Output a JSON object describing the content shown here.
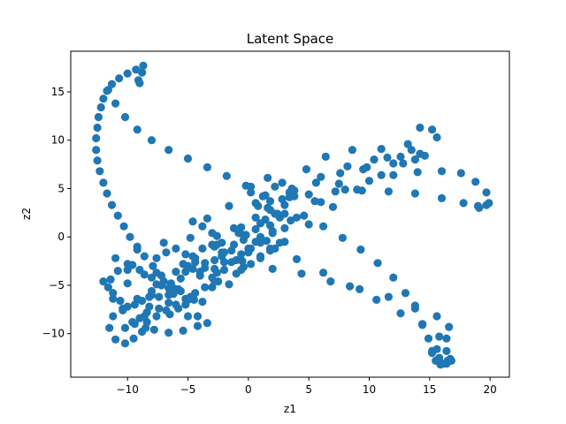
{
  "chart_data": {
    "type": "scatter",
    "title": "Latent Space",
    "xlabel": "z1",
    "ylabel": "z2",
    "xlim": [
      -14.7,
      21.6
    ],
    "ylim": [
      -14.5,
      19.2
    ],
    "xticks": [
      -10,
      -5,
      0,
      5,
      10,
      15,
      20
    ],
    "yticks": [
      -10,
      -5,
      0,
      5,
      10,
      15
    ],
    "grid": false,
    "color": "#1f77b4",
    "series": [
      {
        "points": [
          [
            -8.7,
            17.7
          ],
          [
            -9.3,
            17.3
          ],
          [
            -10.0,
            16.9
          ],
          [
            -10.7,
            16.4
          ],
          [
            -11.3,
            15.8
          ],
          [
            -11.7,
            15.1
          ],
          [
            -12.0,
            14.3
          ],
          [
            -12.2,
            13.4
          ],
          [
            -12.4,
            12.4
          ],
          [
            -12.5,
            11.3
          ],
          [
            -12.6,
            10.2
          ],
          [
            -12.6,
            9.0
          ],
          [
            -12.5,
            7.9
          ],
          [
            -12.3,
            6.8
          ],
          [
            -12.0,
            5.6
          ],
          [
            -11.7,
            4.5
          ],
          [
            -11.3,
            3.3
          ],
          [
            -10.8,
            2.2
          ],
          [
            -10.3,
            1.1
          ],
          [
            -9.8,
            0.0
          ],
          [
            -9.2,
            -1.0
          ],
          [
            -8.6,
            -2.0
          ],
          [
            -7.9,
            -3.0
          ],
          [
            -7.2,
            -4.0
          ],
          [
            -6.4,
            -4.8
          ],
          [
            -5.6,
            -5.6
          ],
          [
            -4.7,
            -6.2
          ],
          [
            -3.8,
            -6.7
          ],
          [
            -8.8,
            17.0
          ],
          [
            -9.1,
            16.2
          ],
          [
            -9.0,
            15.9
          ],
          [
            -11.6,
            15.2
          ],
          [
            -11.0,
            13.8
          ],
          [
            -10.2,
            12.4
          ],
          [
            -9.2,
            11.1
          ],
          [
            -8.0,
            10.0
          ],
          [
            -6.6,
            9.0
          ],
          [
            -5.0,
            8.1
          ],
          [
            -3.4,
            7.2
          ],
          [
            -1.8,
            6.3
          ],
          [
            -0.2,
            5.3
          ],
          [
            1.4,
            4.3
          ],
          [
            3.0,
            3.3
          ],
          [
            4.6,
            2.2
          ],
          [
            6.2,
            1.1
          ],
          [
            7.8,
            -0.1
          ],
          [
            9.3,
            -1.3
          ],
          [
            10.7,
            -2.7
          ],
          [
            12.0,
            -4.2
          ],
          [
            13.0,
            -5.8
          ],
          [
            13.8,
            -7.4
          ],
          [
            14.4,
            -9.0
          ],
          [
            14.9,
            -10.5
          ],
          [
            15.2,
            -11.8
          ],
          [
            15.5,
            -12.8
          ],
          [
            15.9,
            -13.2
          ],
          [
            16.4,
            -13.1
          ],
          [
            16.7,
            -12.6
          ],
          [
            -9.2,
            -1.3
          ],
          [
            -7.0,
            -0.6
          ],
          [
            -4.8,
            -0.1
          ],
          [
            -2.6,
            0.1
          ],
          [
            -0.4,
            -0.3
          ],
          [
            1.8,
            -1.2
          ],
          [
            4.0,
            -2.3
          ],
          [
            6.2,
            -3.7
          ],
          [
            8.4,
            -5.1
          ],
          [
            10.6,
            -6.5
          ],
          [
            12.6,
            -7.9
          ],
          [
            14.4,
            -9.1
          ],
          [
            15.8,
            -10.3
          ],
          [
            16.4,
            -11.8
          ],
          [
            16.5,
            -12.8
          ],
          [
            -10.0,
            -3.4
          ],
          [
            -7.6,
            -3.7
          ],
          [
            -5.2,
            -3.6
          ],
          [
            -2.8,
            -3.3
          ],
          [
            -0.4,
            -3.1
          ],
          [
            2.0,
            -3.3
          ],
          [
            4.4,
            -3.8
          ],
          [
            6.8,
            -4.6
          ],
          [
            9.2,
            -5.4
          ],
          [
            11.6,
            -6.2
          ],
          [
            13.8,
            -7.1
          ],
          [
            15.6,
            -8.2
          ],
          [
            16.6,
            -9.3
          ],
          [
            16.4,
            -10.5
          ],
          [
            15.6,
            -11.6
          ],
          [
            -8.0,
            -6.0
          ],
          [
            -6.2,
            -5.3
          ],
          [
            -4.0,
            -4.0
          ],
          [
            -2.0,
            -2.6
          ],
          [
            0.0,
            -1.2
          ],
          [
            2.0,
            0.4
          ],
          [
            4.0,
            2.0
          ],
          [
            6.0,
            3.6
          ],
          [
            8.0,
            4.9
          ],
          [
            10.0,
            5.8
          ],
          [
            12.0,
            6.4
          ],
          [
            14.0,
            6.7
          ],
          [
            16.0,
            6.8
          ],
          [
            17.6,
            6.6
          ],
          [
            18.8,
            5.7
          ],
          [
            19.7,
            4.6
          ],
          [
            19.9,
            3.5
          ],
          [
            19.1,
            3.0
          ],
          [
            -5.0,
            -6.5
          ],
          [
            -3.0,
            -5.2
          ],
          [
            -1.0,
            -3.8
          ],
          [
            1.0,
            -2.2
          ],
          [
            3.0,
            -0.5
          ],
          [
            5.0,
            1.3
          ],
          [
            7.0,
            3.1
          ],
          [
            9.0,
            4.9
          ],
          [
            11.0,
            6.4
          ],
          [
            12.8,
            7.6
          ],
          [
            14.2,
            8.6
          ],
          [
            -8.5,
            -9.4
          ],
          [
            -6.5,
            -8.0
          ],
          [
            -4.5,
            -6.5
          ],
          [
            -2.5,
            -4.6
          ],
          [
            -0.5,
            -2.5
          ],
          [
            1.5,
            -0.4
          ],
          [
            3.5,
            1.7
          ],
          [
            5.5,
            3.7
          ],
          [
            7.5,
            5.5
          ],
          [
            9.5,
            7.0
          ],
          [
            11.5,
            8.2
          ],
          [
            13.5,
            9.0
          ],
          [
            -2.2,
            -2.0
          ],
          [
            -0.2,
            0.2
          ],
          [
            1.8,
            2.8
          ],
          [
            3.6,
            5.0
          ],
          [
            4.8,
            7.0
          ],
          [
            6.4,
            8.3
          ],
          [
            8.6,
            9.0
          ],
          [
            11.0,
            9.1
          ],
          [
            13.2,
            9.6
          ],
          [
            14.2,
            11.3
          ],
          [
            15.2,
            11.1
          ],
          [
            15.6,
            10.3
          ],
          [
            -1.6,
            3.2
          ],
          [
            0.6,
            3.5
          ],
          [
            2.8,
            3.9
          ],
          [
            5.0,
            4.4
          ],
          [
            7.2,
            4.7
          ],
          [
            9.4,
            4.8
          ],
          [
            11.6,
            4.7
          ],
          [
            13.8,
            4.5
          ],
          [
            16.0,
            4.0
          ],
          [
            17.8,
            3.5
          ],
          [
            19.0,
            3.2
          ],
          [
            19.7,
            3.3
          ],
          [
            -2.8,
            -1.0
          ],
          [
            -0.6,
            1.0
          ],
          [
            1.6,
            3.0
          ],
          [
            3.8,
            4.8
          ],
          [
            6.0,
            6.2
          ],
          [
            8.2,
            7.3
          ],
          [
            10.4,
            8.0
          ],
          [
            12.6,
            8.3
          ],
          [
            14.6,
            8.4
          ],
          [
            0.6,
            0.8
          ],
          [
            2.2,
            2.4
          ],
          [
            3.8,
            4.2
          ],
          [
            5.6,
            5.6
          ],
          [
            7.6,
            6.6
          ],
          [
            9.8,
            7.2
          ],
          [
            12.0,
            7.6
          ],
          [
            13.8,
            8.0
          ],
          [
            -3.4,
            1.9
          ],
          [
            -1.2,
            0.9
          ],
          [
            0.6,
            -0.5
          ],
          [
            2.2,
            -1.2
          ],
          [
            3.0,
            0.9
          ],
          [
            1.8,
            3.7
          ],
          [
            0.2,
            5.2
          ],
          [
            1.6,
            6.1
          ],
          [
            2.8,
            5.6
          ],
          [
            3.4,
            4.1
          ],
          [
            2.4,
            2.4
          ],
          [
            1.0,
            1.4
          ],
          [
            -0.8,
            0.4
          ],
          [
            -2.6,
            -0.8
          ],
          [
            -4.4,
            -2.2
          ],
          [
            -11.4,
            -4.4
          ],
          [
            -10.8,
            -3.5
          ],
          [
            -10.0,
            -4.8
          ],
          [
            -9.2,
            -6.4
          ],
          [
            -8.4,
            -7.8
          ],
          [
            -7.4,
            -7.4
          ],
          [
            -6.6,
            -6.0
          ],
          [
            -5.8,
            -5.4
          ],
          [
            -4.8,
            -6.2
          ],
          [
            -11.2,
            -6.4
          ],
          [
            -10.4,
            -7.4
          ],
          [
            -9.6,
            -8.8
          ],
          [
            -8.8,
            -9.8
          ],
          [
            -9.5,
            -10.5
          ],
          [
            -10.2,
            -11.0
          ],
          [
            -11.0,
            -10.6
          ],
          [
            -11.5,
            -9.4
          ],
          [
            -11.2,
            -8.2
          ],
          [
            -10.4,
            -7.6
          ],
          [
            -11.0,
            -2.2
          ],
          [
            -10.0,
            -2.8
          ],
          [
            -9.0,
            -3.4
          ],
          [
            -8.0,
            -4.2
          ],
          [
            -7.2,
            -5.0
          ],
          [
            -6.2,
            -5.9
          ],
          [
            -5.2,
            -7.0
          ],
          [
            -4.2,
            -8.2
          ],
          [
            -3.4,
            -8.9
          ],
          [
            -9.6,
            -2.9
          ],
          [
            -8.6,
            -3.9
          ],
          [
            -7.6,
            -4.9
          ],
          [
            -6.6,
            -5.3
          ],
          [
            -5.6,
            -4.3
          ],
          [
            -4.6,
            -3.3
          ],
          [
            -3.6,
            -2.7
          ],
          [
            -2.6,
            -3.7
          ],
          [
            -1.6,
            -4.9
          ],
          [
            -9.0,
            -8.4
          ],
          [
            -8.2,
            -7.2
          ],
          [
            -7.4,
            -6.2
          ],
          [
            -6.6,
            -6.8
          ],
          [
            -5.8,
            -7.4
          ],
          [
            -5.0,
            -8.2
          ],
          [
            -4.2,
            -9.2
          ],
          [
            -5.4,
            -9.7
          ],
          [
            -6.6,
            -9.9
          ],
          [
            -7.8,
            -9.6
          ],
          [
            -8.0,
            -5.6
          ],
          [
            -7.0,
            -4.6
          ],
          [
            -6.0,
            -3.6
          ],
          [
            -5.0,
            -3.0
          ],
          [
            -4.0,
            -3.6
          ],
          [
            -3.0,
            -4.2
          ],
          [
            -2.0,
            -3.4
          ],
          [
            -1.0,
            -2.4
          ],
          [
            0.0,
            -1.6
          ],
          [
            1.0,
            -0.6
          ],
          [
            -4.6,
            1.6
          ],
          [
            -3.8,
            1.1
          ],
          [
            -3.0,
            0.4
          ],
          [
            -2.2,
            -0.6
          ],
          [
            -1.4,
            -1.4
          ],
          [
            -0.6,
            -1.8
          ],
          [
            0.2,
            -1.2
          ],
          [
            1.0,
            0.0
          ],
          [
            1.8,
            1.2
          ],
          [
            2.6,
            2.0
          ],
          [
            -5.4,
            -2.8
          ],
          [
            -4.6,
            -2.0
          ],
          [
            -3.8,
            -1.2
          ],
          [
            -3.0,
            -0.8
          ],
          [
            -2.2,
            -1.6
          ],
          [
            -1.4,
            -2.6
          ],
          [
            -0.6,
            -3.4
          ],
          [
            0.2,
            -2.8
          ],
          [
            1.0,
            -2.0
          ],
          [
            1.8,
            -1.4
          ],
          [
            -7.6,
            -2.2
          ],
          [
            -6.8,
            -1.6
          ],
          [
            -6.0,
            -1.2
          ],
          [
            -5.2,
            -1.8
          ],
          [
            -4.4,
            -2.6
          ],
          [
            -3.6,
            -3.2
          ],
          [
            -2.8,
            -2.4
          ],
          [
            -2.0,
            -1.6
          ],
          [
            -1.2,
            -0.8
          ],
          [
            -0.4,
            0.2
          ],
          [
            0.2,
            4.6
          ],
          [
            0.8,
            3.2
          ],
          [
            1.4,
            1.8
          ],
          [
            2.0,
            0.6
          ],
          [
            2.6,
            -0.6
          ],
          [
            3.0,
            2.4
          ],
          [
            3.4,
            4.6
          ],
          [
            2.2,
            5.2
          ],
          [
            1.2,
            4.2
          ],
          [
            0.6,
            2.0
          ],
          [
            -12.0,
            -4.6
          ],
          [
            -11.6,
            -5.2
          ],
          [
            -11.2,
            -5.8
          ],
          [
            -10.6,
            -6.6
          ],
          [
            -10.0,
            -7.2
          ],
          [
            -9.4,
            -7.0
          ],
          [
            -8.8,
            -6.6
          ],
          [
            -8.2,
            -6.2
          ],
          [
            -8.4,
            -8.8
          ],
          [
            -7.6,
            -8.2
          ],
          [
            -6.8,
            -7.6
          ],
          [
            -6.0,
            -7.0
          ],
          [
            -5.2,
            -6.4
          ],
          [
            -4.4,
            -5.8
          ],
          [
            -3.6,
            -5.2
          ],
          [
            -2.8,
            -4.6
          ],
          [
            16.8,
            -12.8
          ],
          [
            16.2,
            -13.1
          ],
          [
            15.8,
            -12.5
          ],
          [
            15.2,
            -12.0
          ],
          [
            -10.2,
            -9.4
          ],
          [
            -9.4,
            -9.0
          ],
          [
            -8.6,
            -8.2
          ]
        ]
      }
    ]
  }
}
